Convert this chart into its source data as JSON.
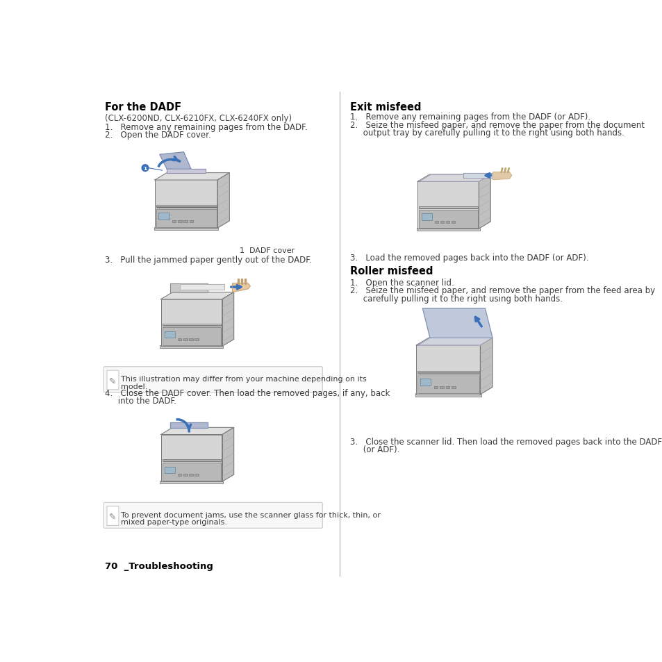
{
  "page_width": 9.54,
  "page_height": 9.54,
  "bg_color": "#ffffff",
  "left_col": {
    "title": "For the DADF",
    "subtitle": "(CLX-6200ND, CLX-6210FX, CLX-6240FX only)",
    "step1": "1.   Remove any remaining pages from the DADF.",
    "step2": "2.   Open the DADF cover.",
    "dadf_label": "1  DADF cover",
    "step3": "3.   Pull the jammed paper gently out of the DADF.",
    "note1_line1": "This illustration may differ from your machine depending on its",
    "note1_line2": "model.",
    "step4_line1": "4.   Close the DADF cover. Then load the removed pages, if any, back",
    "step4_line2": "     into the DADF.",
    "note2_line1": "To prevent document jams, use the scanner glass for thick, thin, or",
    "note2_line2": "mixed paper-type originals.",
    "footer": "70  _Troubleshooting"
  },
  "right_col": {
    "title": "Exit misfeed",
    "step1": "1.   Remove any remaining pages from the DADF (or ADF).",
    "step2_line1": "2.   Seize the misfeed paper, and remove the paper from the document",
    "step2_line2": "     output tray by carefully pulling it to the right using both hands.",
    "step3": "3.   Load the removed pages back into the DADF (or ADF).",
    "title2": "Roller misfeed",
    "r_step1": "1.   Open the scanner lid.",
    "r_step2_line1": "2.   Seize the misfeed paper, and remove the paper from the feed area by",
    "r_step2_line2": "     carefully pulling it to the right using both hands.",
    "r_step3_line1": "3.   Close the scanner lid. Then load the removed pages back into the DADF",
    "r_step3_line2": "     (or ADF)."
  },
  "colors": {
    "title_color": "#000000",
    "text_color": "#3a3a3a",
    "subtitle_color": "#444444",
    "divider_color": "#c0c0c0",
    "note_bg": "#f8f8f8",
    "note_border": "#c8c8c8",
    "blue": "#3a70b8",
    "printer_body": "#d8d8d8",
    "printer_body2": "#c8c8c8",
    "printer_dark": "#909090",
    "printer_line": "#666666",
    "printer_shadow": "#b0b0b0",
    "note_icon_color": "#888888"
  }
}
